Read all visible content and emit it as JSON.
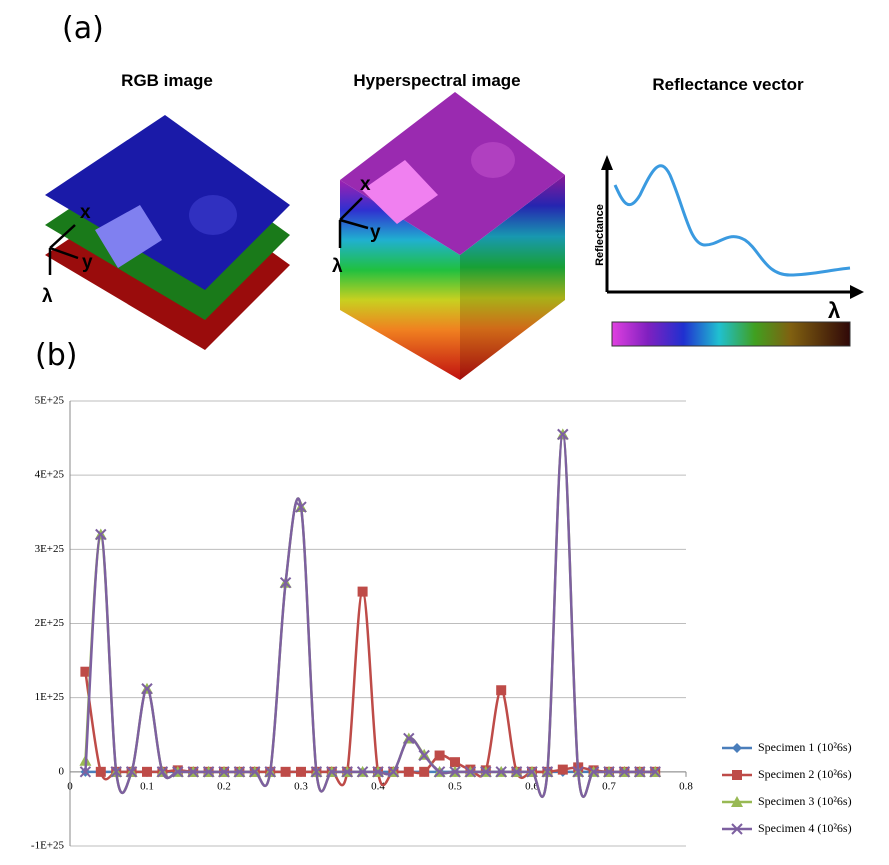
{
  "panels": {
    "a": "(a)",
    "b": "(b)"
  },
  "illustration": {
    "rgb": {
      "title": "RGB image",
      "axis_labels": [
        "x",
        "y",
        "λ"
      ]
    },
    "hyperspectral": {
      "title": "Hyperspectral image",
      "axis_labels": [
        "x",
        "y",
        "λ"
      ]
    },
    "reflectance": {
      "title": "Reflectance vector",
      "y_label": "Reflectance",
      "x_label": "λ"
    }
  },
  "chart_data": {
    "type": "line",
    "smooth": true,
    "grid": true,
    "legend": "right",
    "x": [
      0.02,
      0.04,
      0.06,
      0.08,
      0.1,
      0.12,
      0.14,
      0.16,
      0.18,
      0.2,
      0.22,
      0.24,
      0.26,
      0.28,
      0.3,
      0.32,
      0.34,
      0.36,
      0.38,
      0.4,
      0.42,
      0.44,
      0.46,
      0.48,
      0.5,
      0.52,
      0.54,
      0.56,
      0.58,
      0.6,
      0.62,
      0.64,
      0.66,
      0.68,
      0.7,
      0.72,
      0.74,
      0.76
    ],
    "xlim": [
      0,
      0.8
    ],
    "xticks": [
      0,
      0.1,
      0.2,
      0.3,
      0.4,
      0.5,
      0.6,
      0.7,
      0.8
    ],
    "ylim": [
      -1e+25,
      5e+25
    ],
    "yticks": [
      {
        "value": -1e+25,
        "label": "-1E+25"
      },
      0,
      {
        "value": 1e+25,
        "label": "1E+25"
      },
      {
        "value": 2e+25,
        "label": "2E+25"
      },
      {
        "value": 3e+25,
        "label": "3E+25"
      },
      {
        "value": 4e+25,
        "label": "4E+25"
      },
      {
        "value": 5e+25,
        "label": "5E+25"
      }
    ],
    "series": [
      {
        "name": "Specimen 1 (10²6s)",
        "color": "#4a7ebb",
        "marker": "diamond",
        "values": [
          0,
          0,
          0,
          0,
          0,
          0,
          0,
          0,
          0,
          0,
          0,
          0,
          0,
          0,
          0,
          0,
          0,
          0,
          0,
          0,
          0,
          0,
          0,
          0,
          0,
          0,
          0,
          0,
          0,
          0,
          0,
          0,
          0,
          0,
          0,
          0,
          0,
          0
        ]
      },
      {
        "name": "Specimen 2 (10²6s)",
        "color": "#be4b48",
        "marker": "square",
        "values": [
          1.35e+25,
          0,
          0,
          0,
          0,
          0,
          2e+23,
          0,
          0,
          0,
          0,
          0,
          0,
          0,
          0,
          0,
          0,
          0,
          2.43e+25,
          0,
          0,
          0,
          0,
          2.2e+24,
          1.3e+24,
          3e+23,
          2e+23,
          1.1e+25,
          0,
          0,
          0,
          3e+23,
          6e+23,
          2e+23,
          0,
          0,
          0,
          0
        ]
      },
      {
        "name": "Specimen 3 (10²6s)",
        "color": "#98b954",
        "marker": "triangle",
        "values": [
          1.5e+24,
          3.2e+25,
          0,
          0,
          1.12e+25,
          0,
          0,
          0,
          0,
          0,
          0,
          0,
          0,
          2.55e+25,
          3.57e+25,
          0,
          0,
          0,
          0,
          0,
          0,
          4.5e+24,
          2.3e+24,
          0,
          0,
          0,
          0,
          0,
          0,
          0,
          0,
          4.55e+25,
          0,
          0,
          0,
          0,
          0,
          0
        ]
      },
      {
        "name": "Specimen 4 (10²6s)",
        "color": "#7d60a0",
        "marker": "x",
        "values": [
          0,
          3.2e+25,
          0,
          0,
          1.12e+25,
          0,
          0,
          0,
          0,
          0,
          0,
          0,
          0,
          2.55e+25,
          3.57e+25,
          0,
          0,
          0,
          0,
          0,
          0,
          4.5e+24,
          2.2e+24,
          0,
          0,
          0,
          0,
          0,
          0,
          0,
          0,
          4.55e+25,
          0,
          0,
          0,
          0,
          0,
          0
        ]
      }
    ]
  }
}
